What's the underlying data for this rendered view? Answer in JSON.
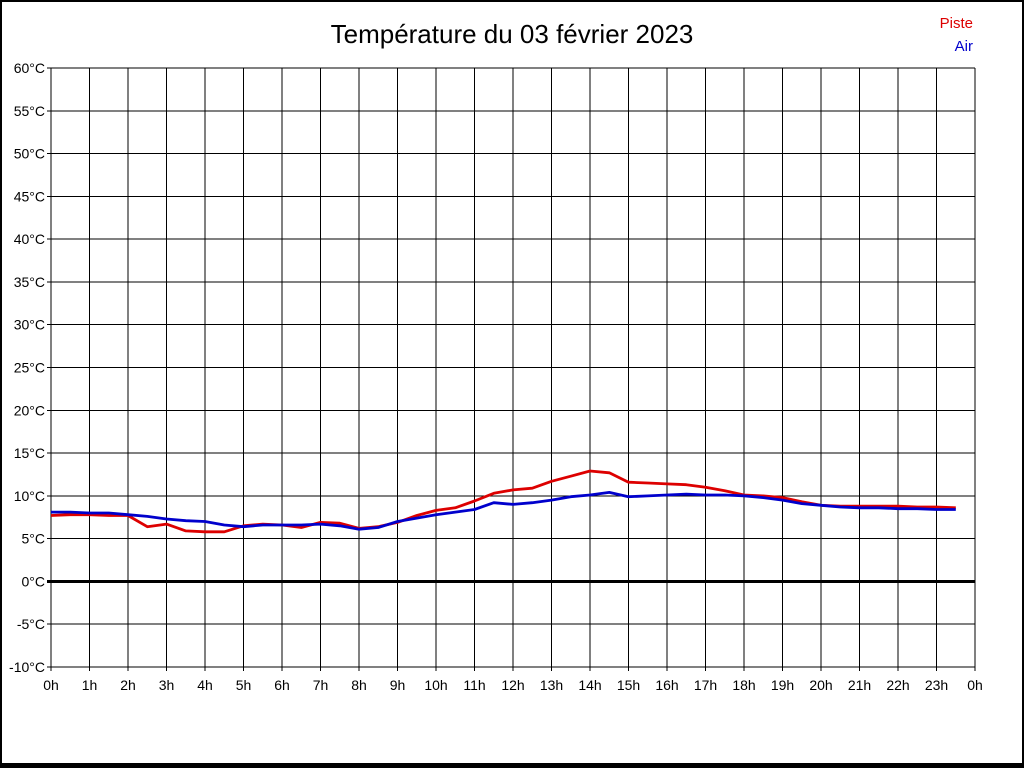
{
  "header": {
    "title": "Température du 03 février 2023"
  },
  "legend": [
    {
      "label": "Piste",
      "color": "#dd0000"
    },
    {
      "label": "Air",
      "color": "#0000cc"
    }
  ],
  "chart_data": {
    "type": "line",
    "title": "Température du 03 février 2023",
    "xlabel": "",
    "ylabel": "",
    "ylim": [
      -10,
      60
    ],
    "ytick_step": 5,
    "ytick_suffix": "°C",
    "xlim": [
      0,
      24
    ],
    "xtick_labels": [
      "0h",
      "1h",
      "2h",
      "3h",
      "4h",
      "5h",
      "6h",
      "7h",
      "8h",
      "9h",
      "10h",
      "11h",
      "12h",
      "13h",
      "14h",
      "15h",
      "16h",
      "17h",
      "18h",
      "19h",
      "20h",
      "21h",
      "22h",
      "23h",
      "0h"
    ],
    "grid": true,
    "grid_color": "#000000",
    "zero_line_width": 3,
    "legend_position": "top-right",
    "x_hours": [
      0,
      0.5,
      1,
      1.5,
      2,
      2.5,
      3,
      3.5,
      4,
      4.5,
      5,
      5.5,
      6,
      6.5,
      7,
      7.5,
      8,
      8.5,
      9,
      9.5,
      10,
      10.5,
      11,
      11.5,
      12,
      12.5,
      13,
      13.5,
      14,
      14.5,
      15,
      15.5,
      16,
      16.5,
      17,
      17.5,
      18,
      18.5,
      19,
      19.5,
      20,
      20.5,
      21,
      21.5,
      22,
      22.5,
      23,
      23.5
    ],
    "series": [
      {
        "name": "Piste",
        "color": "#dd0000",
        "values": [
          7.7,
          7.8,
          7.8,
          7.7,
          7.7,
          6.4,
          6.7,
          5.9,
          5.8,
          5.8,
          6.5,
          6.7,
          6.6,
          6.3,
          6.9,
          6.8,
          6.2,
          6.4,
          6.9,
          7.7,
          8.3,
          8.6,
          9.4,
          10.3,
          10.7,
          10.9,
          11.7,
          12.3,
          12.9,
          12.7,
          11.6,
          11.5,
          11.4,
          11.3,
          11.0,
          10.6,
          10.1,
          10.0,
          9.8,
          9.3,
          8.9,
          8.8,
          8.8,
          8.8,
          8.8,
          8.7,
          8.7,
          8.6
        ]
      },
      {
        "name": "Air",
        "color": "#0000cc",
        "values": [
          8.1,
          8.1,
          8.0,
          8.0,
          7.8,
          7.6,
          7.3,
          7.1,
          7.0,
          6.6,
          6.4,
          6.6,
          6.6,
          6.6,
          6.7,
          6.5,
          6.1,
          6.3,
          7.0,
          7.4,
          7.8,
          8.1,
          8.4,
          9.2,
          9.0,
          9.2,
          9.5,
          9.9,
          10.1,
          10.4,
          9.9,
          10.0,
          10.1,
          10.2,
          10.1,
          10.1,
          10.0,
          9.8,
          9.5,
          9.1,
          8.9,
          8.7,
          8.6,
          8.6,
          8.5,
          8.5,
          8.4,
          8.4
        ]
      }
    ]
  }
}
